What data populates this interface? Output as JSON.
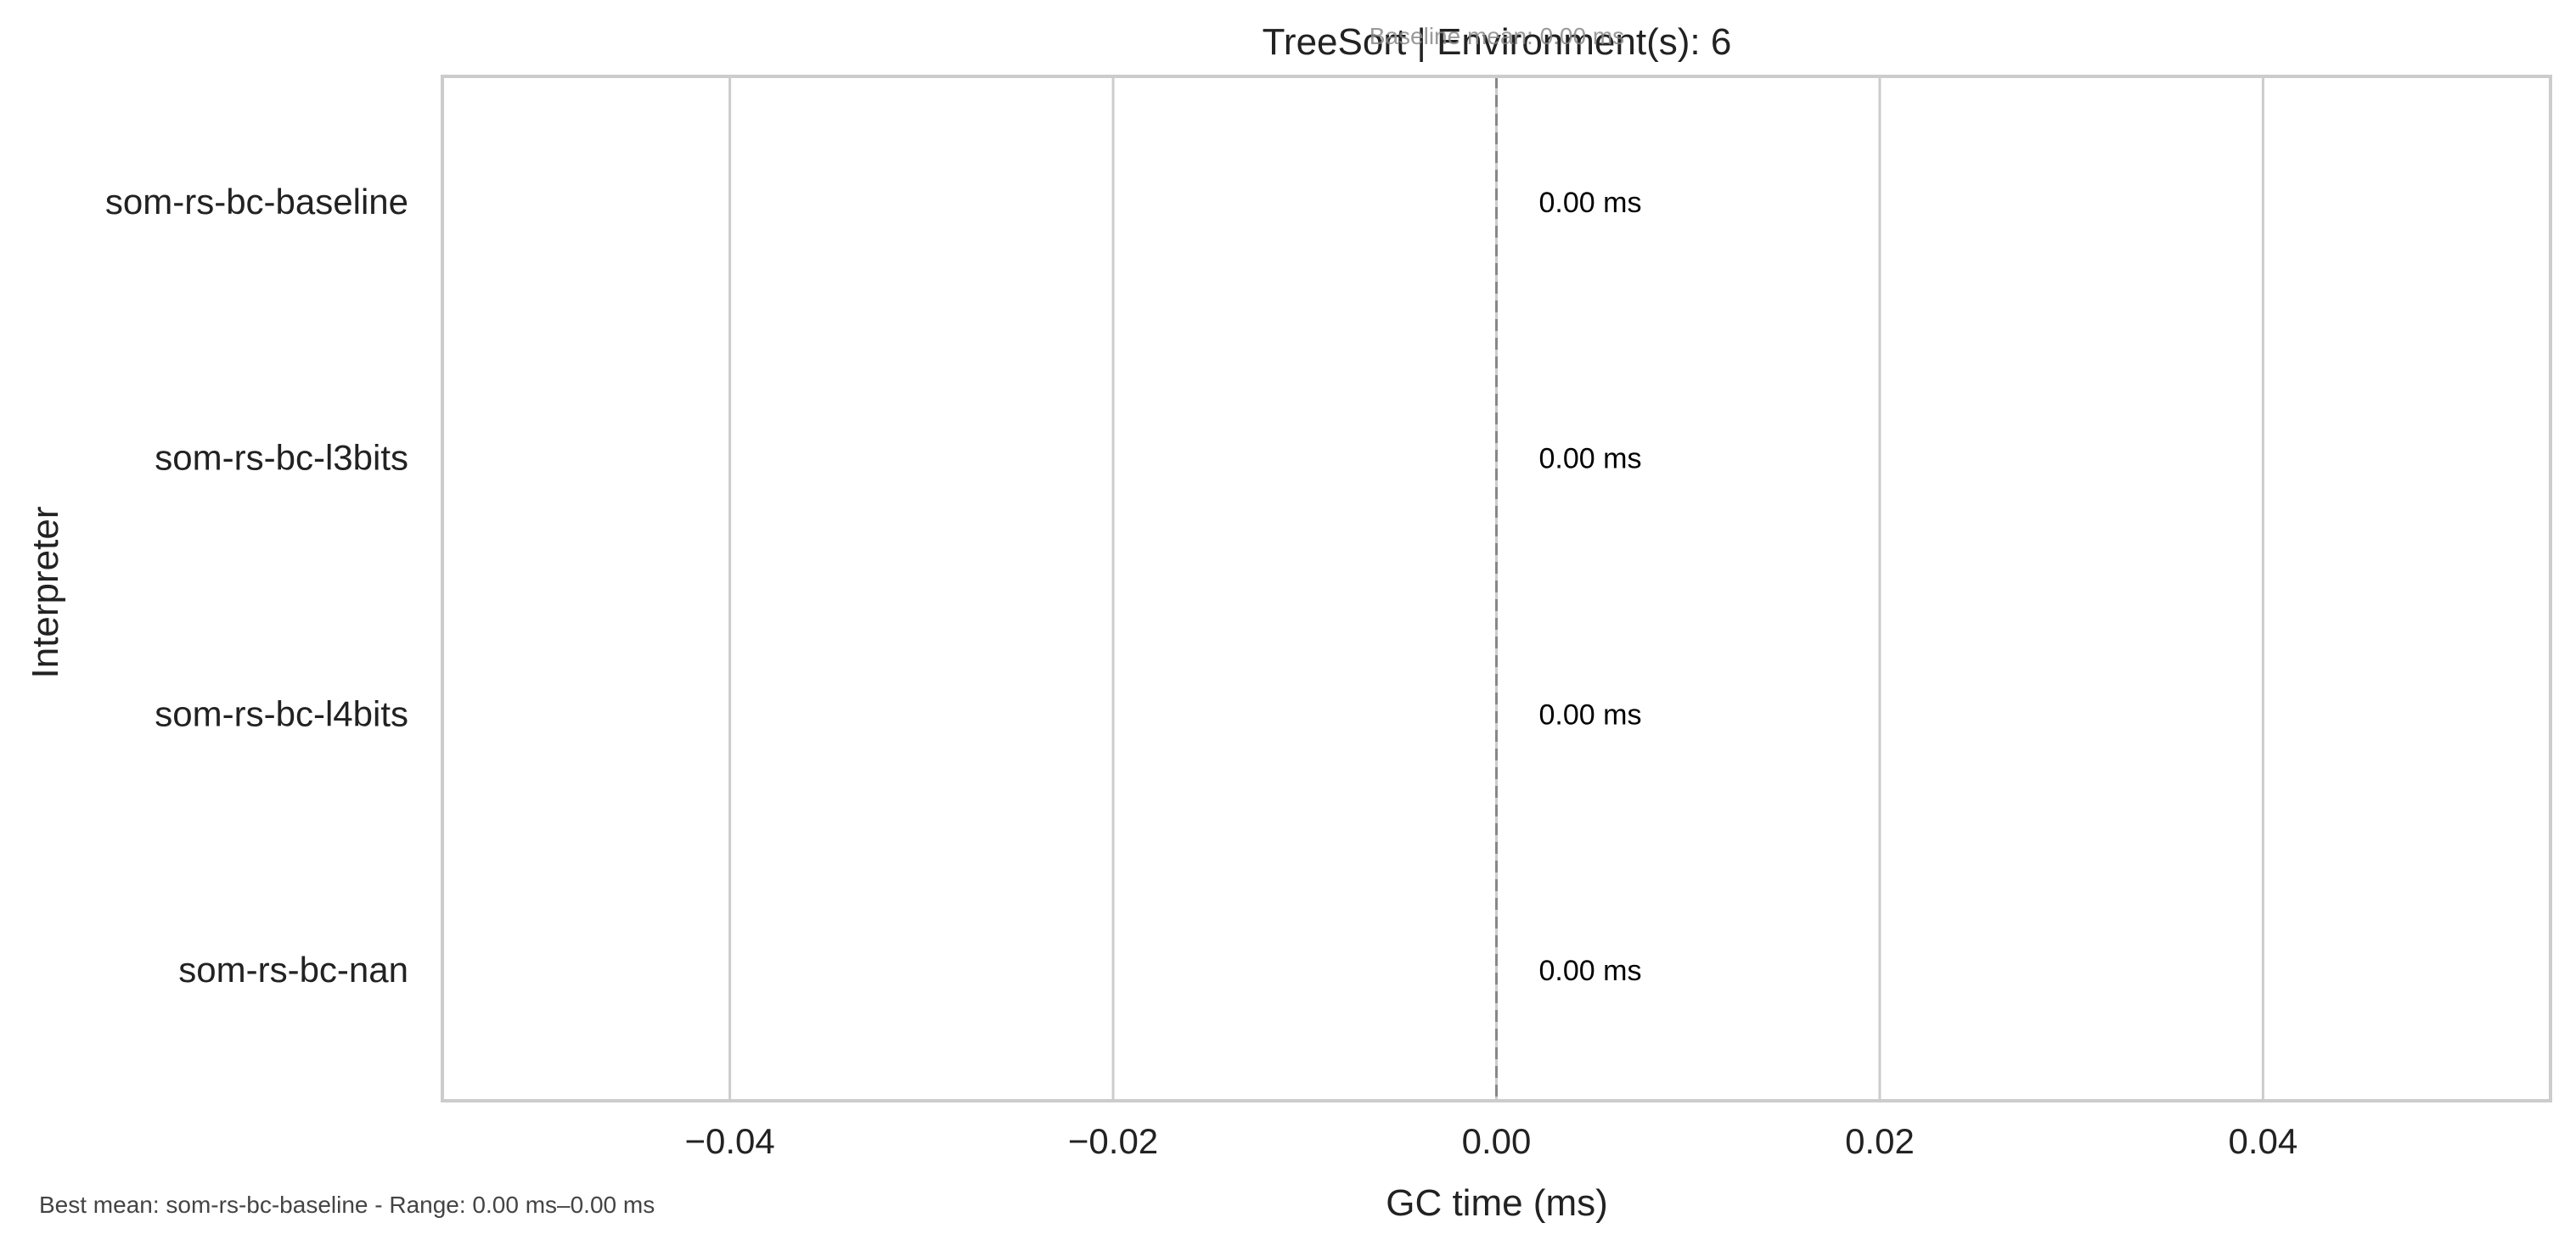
{
  "chart_data": {
    "type": "bar",
    "orientation": "horizontal",
    "title": "TreeSort | Environment(s): 6",
    "annotation_top": "Baseline mean: 0.00 ms",
    "xlabel": "GC time (ms)",
    "ylabel": "Interpreter",
    "categories": [
      "som-rs-bc-baseline",
      "som-rs-bc-l3bits",
      "som-rs-bc-l4bits",
      "som-rs-bc-nan"
    ],
    "values": [
      0.0,
      0.0,
      0.0,
      0.0
    ],
    "value_labels": [
      "0.00 ms",
      "0.00 ms",
      "0.00 ms",
      "0.00 ms"
    ],
    "xlim": [
      -0.055,
      0.055
    ],
    "xticks": [
      -0.04,
      -0.02,
      0.0,
      0.02,
      0.04
    ],
    "xtick_labels": [
      "−0.04",
      "−0.02",
      "0.00",
      "0.02",
      "0.04"
    ],
    "baseline": 0.0,
    "grid": "vertical",
    "legend": "none"
  },
  "footer": {
    "note": "Best mean: som-rs-bc-baseline - Range: 0.00 ms–0.00 ms"
  },
  "colors": {
    "grid": "#cccccc",
    "frame": "#cccccc",
    "bar_edge": "#444444",
    "baseline_line": "#888888",
    "text": "#222222"
  }
}
